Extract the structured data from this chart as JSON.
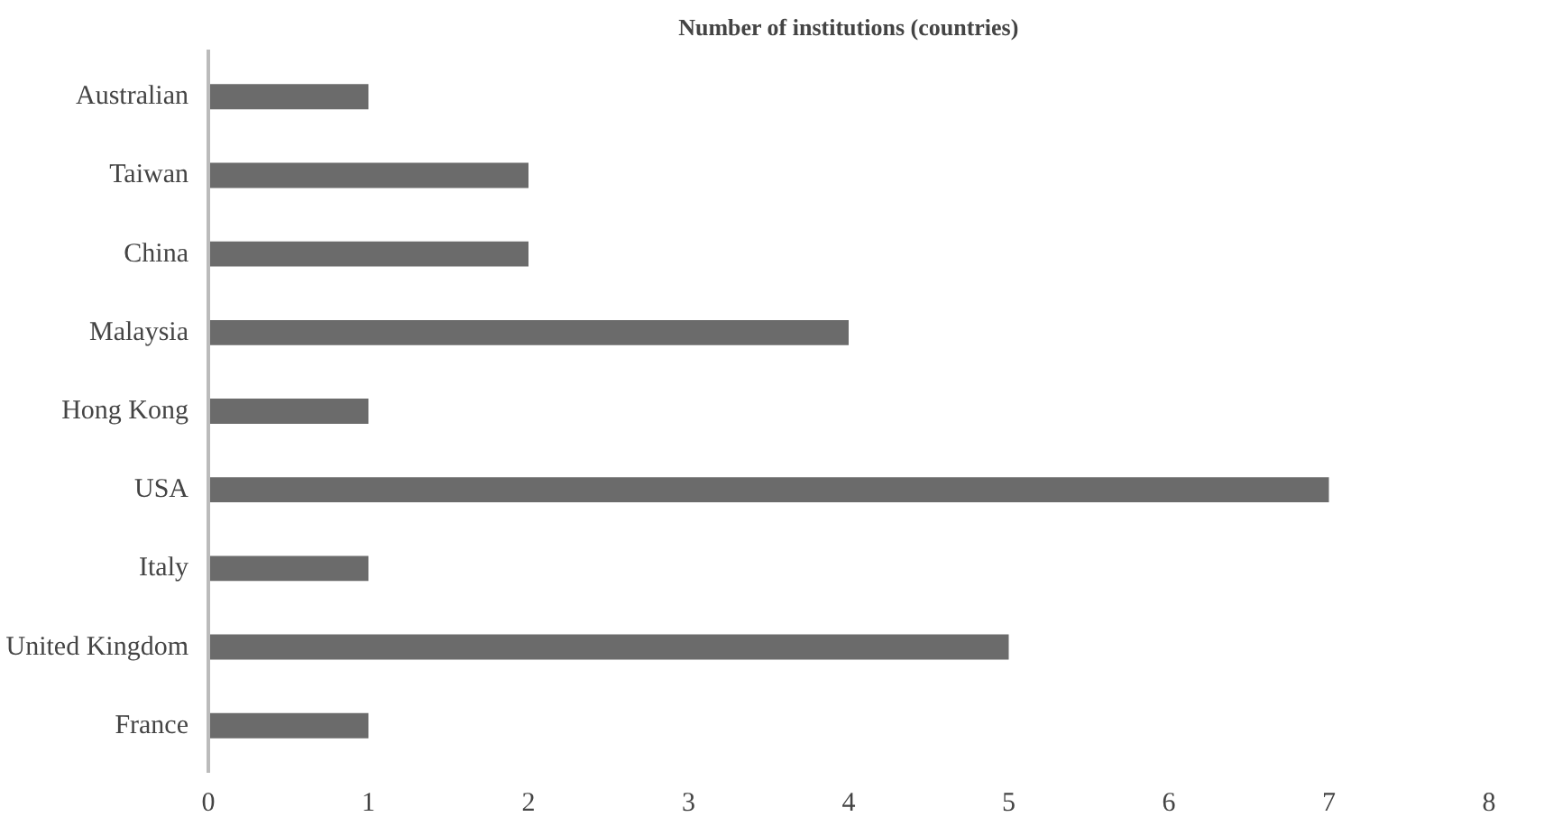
{
  "chart_data": {
    "type": "bar",
    "orientation": "horizontal",
    "title": "Number of institutions (countries)",
    "categories": [
      "Australian",
      "Taiwan",
      "China",
      "Malaysia",
      "Hong Kong",
      "USA",
      "Italy",
      "United Kingdom",
      "France"
    ],
    "values": [
      1,
      2,
      2,
      4,
      1,
      7,
      1,
      5,
      1
    ],
    "color": "#6b6b6b",
    "xlim": [
      0,
      8
    ],
    "xticks": [
      0,
      1,
      2,
      3,
      4,
      5,
      6,
      7,
      8
    ],
    "grid": false
  }
}
